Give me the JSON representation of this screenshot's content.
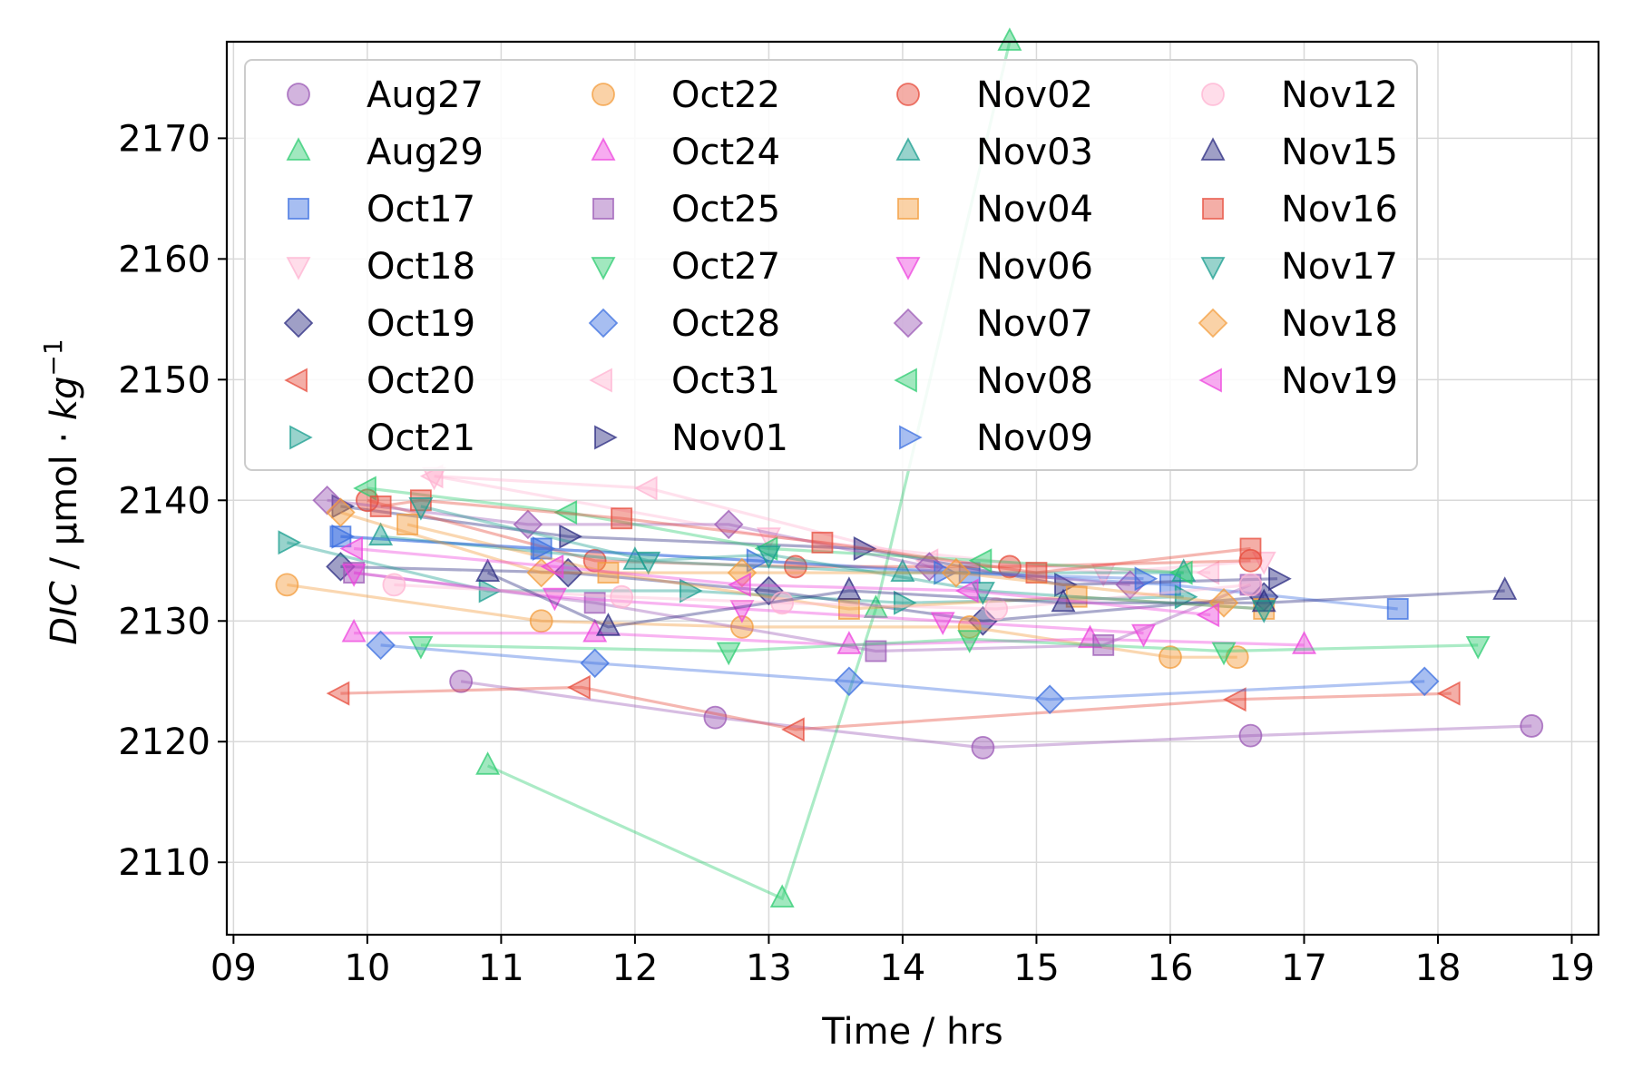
{
  "chart_data": {
    "type": "scatter",
    "title": "",
    "xlabel": "Time / hrs",
    "ylabel_main": "DIC",
    "ylabel_unit": " / µmol · ",
    "ylabel_kg": "kg",
    "ylabel_exp": "−1",
    "xlim": [
      8.95,
      19.2
    ],
    "ylim": [
      2104,
      2178
    ],
    "grid": true,
    "legend_position": "upper-left",
    "xticks": [
      9,
      10,
      11,
      12,
      13,
      14,
      15,
      16,
      17,
      18,
      19
    ],
    "xtick_labels": [
      "09",
      "10",
      "11",
      "12",
      "13",
      "14",
      "15",
      "16",
      "17",
      "18",
      "19"
    ],
    "yticks": [
      2110,
      2120,
      2130,
      2140,
      2150,
      2160,
      2170
    ],
    "ytick_labels": [
      "2110",
      "2120",
      "2130",
      "2140",
      "2150",
      "2160",
      "2170"
    ],
    "series": [
      {
        "name": "Aug27",
        "color": "#9b59b6",
        "marker": "circle",
        "x": [
          10.7,
          12.6,
          14.6,
          16.6,
          18.7
        ],
        "y": [
          2125,
          2122,
          2119.5,
          2120.5,
          2121.3
        ]
      },
      {
        "name": "Aug29",
        "color": "#2ecc71",
        "marker": "triangle-up",
        "x": [
          10.9,
          13.1,
          13.8,
          14.8
        ],
        "y": [
          2118,
          2107,
          2131,
          2178
        ]
      },
      {
        "name": "Oct17",
        "color": "#3b6fe0",
        "marker": "square",
        "x": [
          9.8,
          11.3,
          14.5,
          16.0,
          17.7
        ],
        "y": [
          2137,
          2136,
          2134,
          2133,
          2131
        ]
      },
      {
        "name": "Oct18",
        "color": "#ffb3d1",
        "marker": "triangle-down",
        "x": [
          10.5,
          13.0,
          15.5,
          16.7
        ],
        "y": [
          2142,
          2137,
          2134,
          2135
        ]
      },
      {
        "name": "Oct19",
        "color": "#2a2a80",
        "marker": "diamond",
        "x": [
          9.8,
          11.5,
          13.0,
          14.6,
          16.7
        ],
        "y": [
          2134.5,
          2134,
          2132.5,
          2130,
          2132
        ]
      },
      {
        "name": "Oct20",
        "color": "#e74c3c",
        "marker": "triangle-left",
        "x": [
          9.8,
          11.6,
          13.2,
          16.5,
          18.1
        ],
        "y": [
          2124,
          2124.5,
          2121,
          2123.5,
          2124
        ]
      },
      {
        "name": "Oct21",
        "color": "#1a9e8f",
        "marker": "triangle-right",
        "x": [
          9.4,
          10.9,
          12.4,
          14.0,
          16.1
        ],
        "y": [
          2136.5,
          2132.5,
          2132.5,
          2131.5,
          2132
        ]
      },
      {
        "name": "Oct22",
        "color": "#f39c3c",
        "marker": "circle",
        "x": [
          9.4,
          11.3,
          12.8,
          14.5,
          16.0,
          16.5
        ],
        "y": [
          2133,
          2130,
          2129.5,
          2129.5,
          2127,
          2127
        ]
      },
      {
        "name": "Oct24",
        "color": "#ee44dd",
        "marker": "triangle-up",
        "x": [
          9.9,
          11.7,
          13.6,
          15.4,
          17.0
        ],
        "y": [
          2129,
          2129,
          2128,
          2128.5,
          2128
        ]
      },
      {
        "name": "Oct25",
        "color": "#9b59b6",
        "marker": "square",
        "x": [
          9.9,
          11.7,
          13.8,
          15.5,
          16.6
        ],
        "y": [
          2134,
          2131.5,
          2127.5,
          2128,
          2133
        ]
      },
      {
        "name": "Oct27",
        "color": "#2ecc71",
        "marker": "triangle-down",
        "x": [
          10.4,
          12.7,
          14.5,
          16.4,
          18.3
        ],
        "y": [
          2128,
          2127.5,
          2128.5,
          2127.5,
          2128
        ]
      },
      {
        "name": "Oct28",
        "color": "#3b6fe0",
        "marker": "diamond",
        "x": [
          10.1,
          11.7,
          13.6,
          15.1,
          17.9
        ],
        "y": [
          2128,
          2126.5,
          2125,
          2123.5,
          2125
        ]
      },
      {
        "name": "Oct31",
        "color": "#ffb3d1",
        "marker": "triangle-left",
        "x": [
          10.5,
          12.1,
          14.2,
          16.3
        ],
        "y": [
          2142,
          2141,
          2135,
          2134
        ]
      },
      {
        "name": "Nov01",
        "color": "#2a2a80",
        "marker": "triangle-right",
        "x": [
          9.8,
          11.5,
          13.7,
          15.2,
          16.8
        ],
        "y": [
          2139.5,
          2137,
          2136,
          2133,
          2133.5
        ]
      },
      {
        "name": "Nov02",
        "color": "#e74c3c",
        "marker": "circle",
        "x": [
          10.0,
          11.7,
          13.2,
          14.8,
          16.6
        ],
        "y": [
          2140,
          2135,
          2134.5,
          2134.5,
          2135
        ]
      },
      {
        "name": "Nov03",
        "color": "#1a9e8f",
        "marker": "triangle-up",
        "x": [
          10.1,
          12.0,
          14.0,
          16.1
        ],
        "y": [
          2137,
          2135,
          2134,
          2134
        ]
      },
      {
        "name": "Nov04",
        "color": "#f39c3c",
        "marker": "square",
        "x": [
          10.3,
          11.8,
          13.6,
          15.3,
          16.7
        ],
        "y": [
          2138,
          2134,
          2131,
          2132,
          2131
        ]
      },
      {
        "name": "Nov06",
        "color": "#ee44dd",
        "marker": "triangle-down",
        "x": [
          9.9,
          11.4,
          12.8,
          14.3,
          15.8
        ],
        "y": [
          2134,
          2132,
          2131,
          2130,
          2129
        ]
      },
      {
        "name": "Nov07",
        "color": "#9b59b6",
        "marker": "diamond",
        "x": [
          9.7,
          11.2,
          12.7,
          14.2,
          15.7
        ],
        "y": [
          2140,
          2138,
          2138,
          2134.5,
          2133
        ]
      },
      {
        "name": "Nov08",
        "color": "#2ecc71",
        "marker": "triangle-left",
        "x": [
          10.0,
          11.5,
          13.0,
          14.6,
          16.1
        ],
        "y": [
          2141,
          2139,
          2136,
          2135,
          2134
        ]
      },
      {
        "name": "Nov09",
        "color": "#3b6fe0",
        "marker": "triangle-right",
        "x": [
          9.8,
          11.3,
          12.9,
          14.3,
          15.8
        ],
        "y": [
          2137,
          2136,
          2135,
          2134,
          2133.5
        ]
      },
      {
        "name": "Nov12",
        "color": "#ffb3d1",
        "marker": "circle",
        "x": [
          10.2,
          11.9,
          13.1,
          14.7,
          16.6
        ],
        "y": [
          2133,
          2132,
          2131.5,
          2131,
          2133
        ]
      },
      {
        "name": "Nov15",
        "color": "#2a2a80",
        "marker": "triangle-up",
        "x": [
          10.9,
          11.8,
          13.6,
          15.2,
          16.7,
          18.5
        ],
        "y": [
          2134,
          2129.5,
          2132.5,
          2131.5,
          2131.5,
          2132.5
        ]
      },
      {
        "name": "Nov16",
        "color": "#e74c3c",
        "marker": "square",
        "x": [
          10.1,
          10.4,
          11.9,
          13.4,
          15.0,
          16.6
        ],
        "y": [
          2139.5,
          2140,
          2138.5,
          2136.5,
          2134,
          2136
        ]
      },
      {
        "name": "Nov17",
        "color": "#1a9e8f",
        "marker": "triangle-down",
        "x": [
          10.4,
          12.1,
          13.0,
          14.6,
          16.7
        ],
        "y": [
          2139.5,
          2135,
          2135.5,
          2132.5,
          2131
        ]
      },
      {
        "name": "Nov18",
        "color": "#f39c3c",
        "marker": "diamond",
        "x": [
          9.8,
          11.3,
          12.8,
          14.4,
          16.4
        ],
        "y": [
          2139,
          2134,
          2134,
          2134,
          2131.5
        ]
      },
      {
        "name": "Nov19",
        "color": "#ee44dd",
        "marker": "triangle-left",
        "x": [
          9.9,
          11.4,
          12.8,
          14.5,
          16.3
        ],
        "y": [
          2136,
          2134.5,
          2133,
          2132.5,
          2130.5
        ]
      }
    ]
  }
}
